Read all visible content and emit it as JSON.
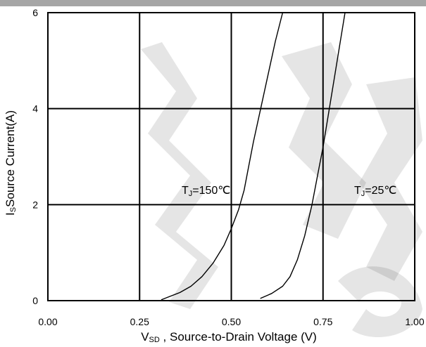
{
  "chart_data": {
    "type": "line",
    "title": "",
    "xlabel": {
      "prefix": "V",
      "sub": "SD",
      "suffix": " , Source-to-Drain Voltage (V)"
    },
    "ylabel": {
      "prefix": "I",
      "sub": "S",
      "suffix": "Source Current(A)"
    },
    "xlim": [
      0,
      1.0
    ],
    "ylim": [
      0,
      6
    ],
    "xticks": [
      0,
      0.25,
      0.5,
      0.75,
      1.0
    ],
    "xtick_labels": [
      "0.00",
      "0.25",
      "0.50",
      "0.75",
      "1.00"
    ],
    "yticks": [
      0,
      2,
      4,
      6
    ],
    "ytick_labels": [
      "0",
      "2",
      "4",
      "6"
    ],
    "grid": true,
    "legend": "none",
    "colors": {
      "line": "#000000",
      "grid": "#000000",
      "top_bar": "#a6a6a6"
    },
    "series": [
      {
        "id": "tj150",
        "label": {
          "prefix": "T",
          "sub": "J",
          "suffix": "=150℃"
        },
        "x": [
          0.31,
          0.33,
          0.36,
          0.39,
          0.42,
          0.45,
          0.48,
          0.5,
          0.52,
          0.535,
          0.545,
          0.56,
          0.58,
          0.6,
          0.62,
          0.64
        ],
        "y": [
          0.02,
          0.08,
          0.17,
          0.3,
          0.5,
          0.78,
          1.15,
          1.5,
          1.9,
          2.3,
          2.7,
          3.3,
          4.0,
          4.7,
          5.4,
          6.0
        ]
      },
      {
        "id": "tj25",
        "label": {
          "prefix": "T",
          "sub": "J",
          "suffix": "=25℃"
        },
        "x": [
          0.58,
          0.61,
          0.64,
          0.66,
          0.68,
          0.7,
          0.72,
          0.735,
          0.75,
          0.765,
          0.78,
          0.795,
          0.81
        ],
        "y": [
          0.05,
          0.15,
          0.3,
          0.5,
          0.85,
          1.35,
          2.0,
          2.6,
          3.2,
          3.9,
          4.6,
          5.3,
          6.0
        ]
      }
    ]
  }
}
